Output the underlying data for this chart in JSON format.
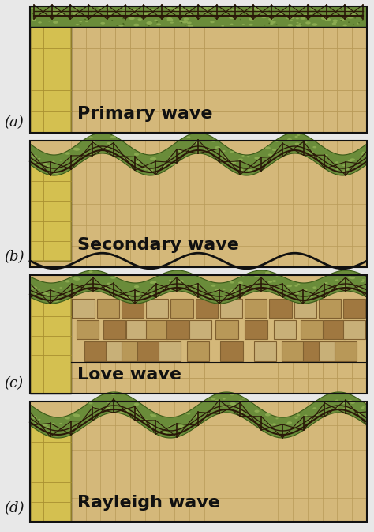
{
  "labels": [
    "(a)",
    "(b)",
    "(c)",
    "(d)"
  ],
  "wave_names": [
    "Primary wave",
    "Secondary wave",
    "Love wave",
    "Rayleigh wave"
  ],
  "bg_color": "#e8e8e8",
  "soil_color": "#d4b87a",
  "soil_color2": "#c8aa68",
  "left_block_color": "#d4c050",
  "grass_color": "#6a8c3a",
  "grass_color2": "#8aaa50",
  "grid_color": "#b89a58",
  "text_color": "#111111",
  "font_size": 16,
  "label_font_size": 13,
  "outline_color": "#111111",
  "fence_color": "#2a1808",
  "love_block_light": "#c8b078",
  "love_block_mid": "#b89858",
  "love_block_dark": "#a07840"
}
